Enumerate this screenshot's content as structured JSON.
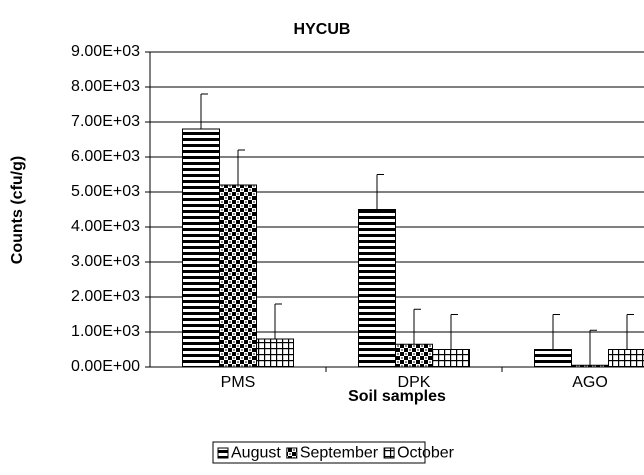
{
  "chart_data": {
    "type": "bar",
    "title": "HYCUB",
    "x_label": "Soil samples",
    "y_label": "Counts (cfu/g)",
    "categories": [
      "PMS",
      "DPK",
      "AGO"
    ],
    "series": [
      {
        "name": "August",
        "pattern": "horizontal-stripes",
        "values": [
          6800,
          4500,
          500
        ],
        "errors": [
          1000,
          1000,
          1000
        ]
      },
      {
        "name": "September",
        "pattern": "checker",
        "values": [
          5200,
          650,
          50
        ],
        "errors": [
          1000,
          1000,
          1000
        ]
      },
      {
        "name": "October",
        "pattern": "grid",
        "values": [
          800,
          500,
          500
        ],
        "errors": [
          1000,
          1000,
          1000
        ]
      }
    ],
    "ylim": [
      0,
      9000
    ],
    "yticks": [
      {
        "value": 0,
        "label": "0.00E+00"
      },
      {
        "value": 1000,
        "label": "1.00E+03"
      },
      {
        "value": 2000,
        "label": "2.00E+03"
      },
      {
        "value": 3000,
        "label": "3.00E+03"
      },
      {
        "value": 4000,
        "label": "4.00E+03"
      },
      {
        "value": 5000,
        "label": "5.00E+03"
      },
      {
        "value": 6000,
        "label": "6.00E+03"
      },
      {
        "value": 7000,
        "label": "7.00E+03"
      },
      {
        "value": 8000,
        "label": "8.00E+03"
      },
      {
        "value": 9000,
        "label": "9.00E+03"
      }
    ],
    "grid": true,
    "legend": "bottom"
  }
}
